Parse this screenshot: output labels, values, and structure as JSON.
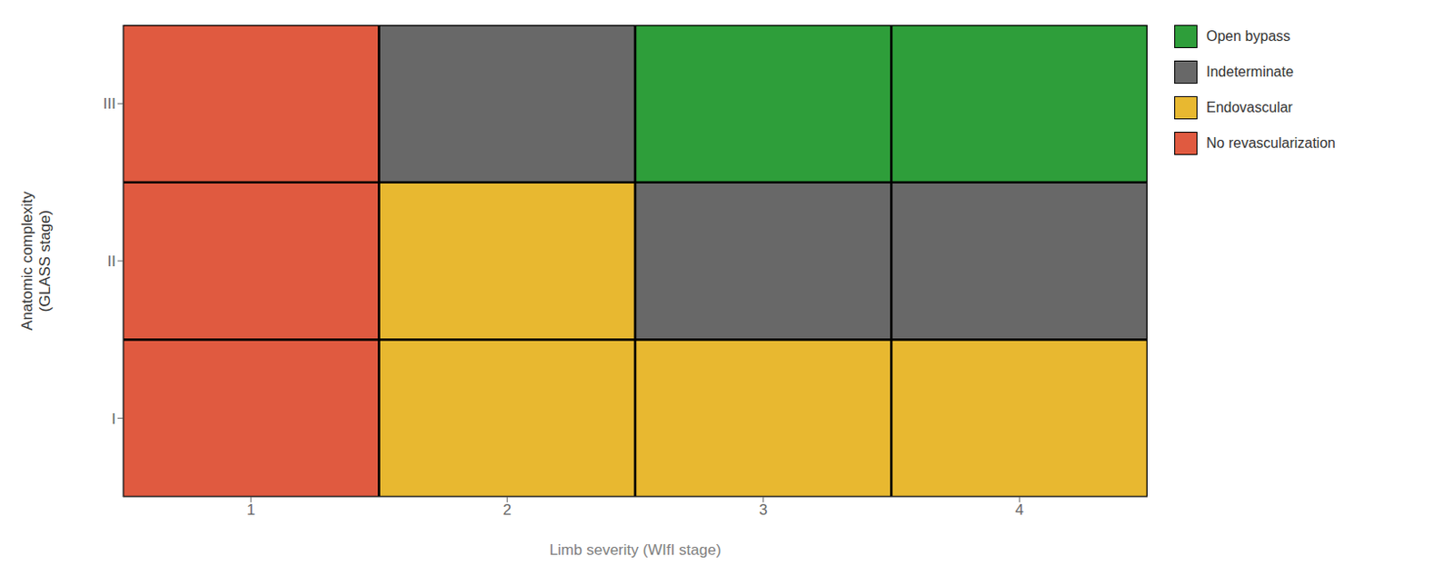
{
  "chart_data": {
    "type": "heatmap",
    "xlabel": "Limb severity (WIfI stage)",
    "ylabel": "Anatomic complexity\n(GLASS stage)",
    "categories": [
      "1",
      "2",
      "3",
      "4"
    ],
    "rows": [
      "I",
      "II",
      "III"
    ],
    "cells": [
      [
        "#E05A40",
        "#E8B830",
        "#E8B830",
        "#E8B830"
      ],
      [
        "#E05A40",
        "#E8B830",
        "#686868",
        "#686868"
      ],
      [
        "#E05A40",
        "#686868",
        "#2E9E3A",
        "#2E9E3A"
      ]
    ],
    "series": [
      {
        "name": "Open bypass",
        "color": "#2E9E3A"
      },
      {
        "name": "Indeterminate",
        "color": "#686868"
      },
      {
        "name": "Endovascular",
        "color": "#E8B830"
      },
      {
        "name": "No revascularization",
        "color": "#E05A40"
      }
    ],
    "legend": "right"
  }
}
